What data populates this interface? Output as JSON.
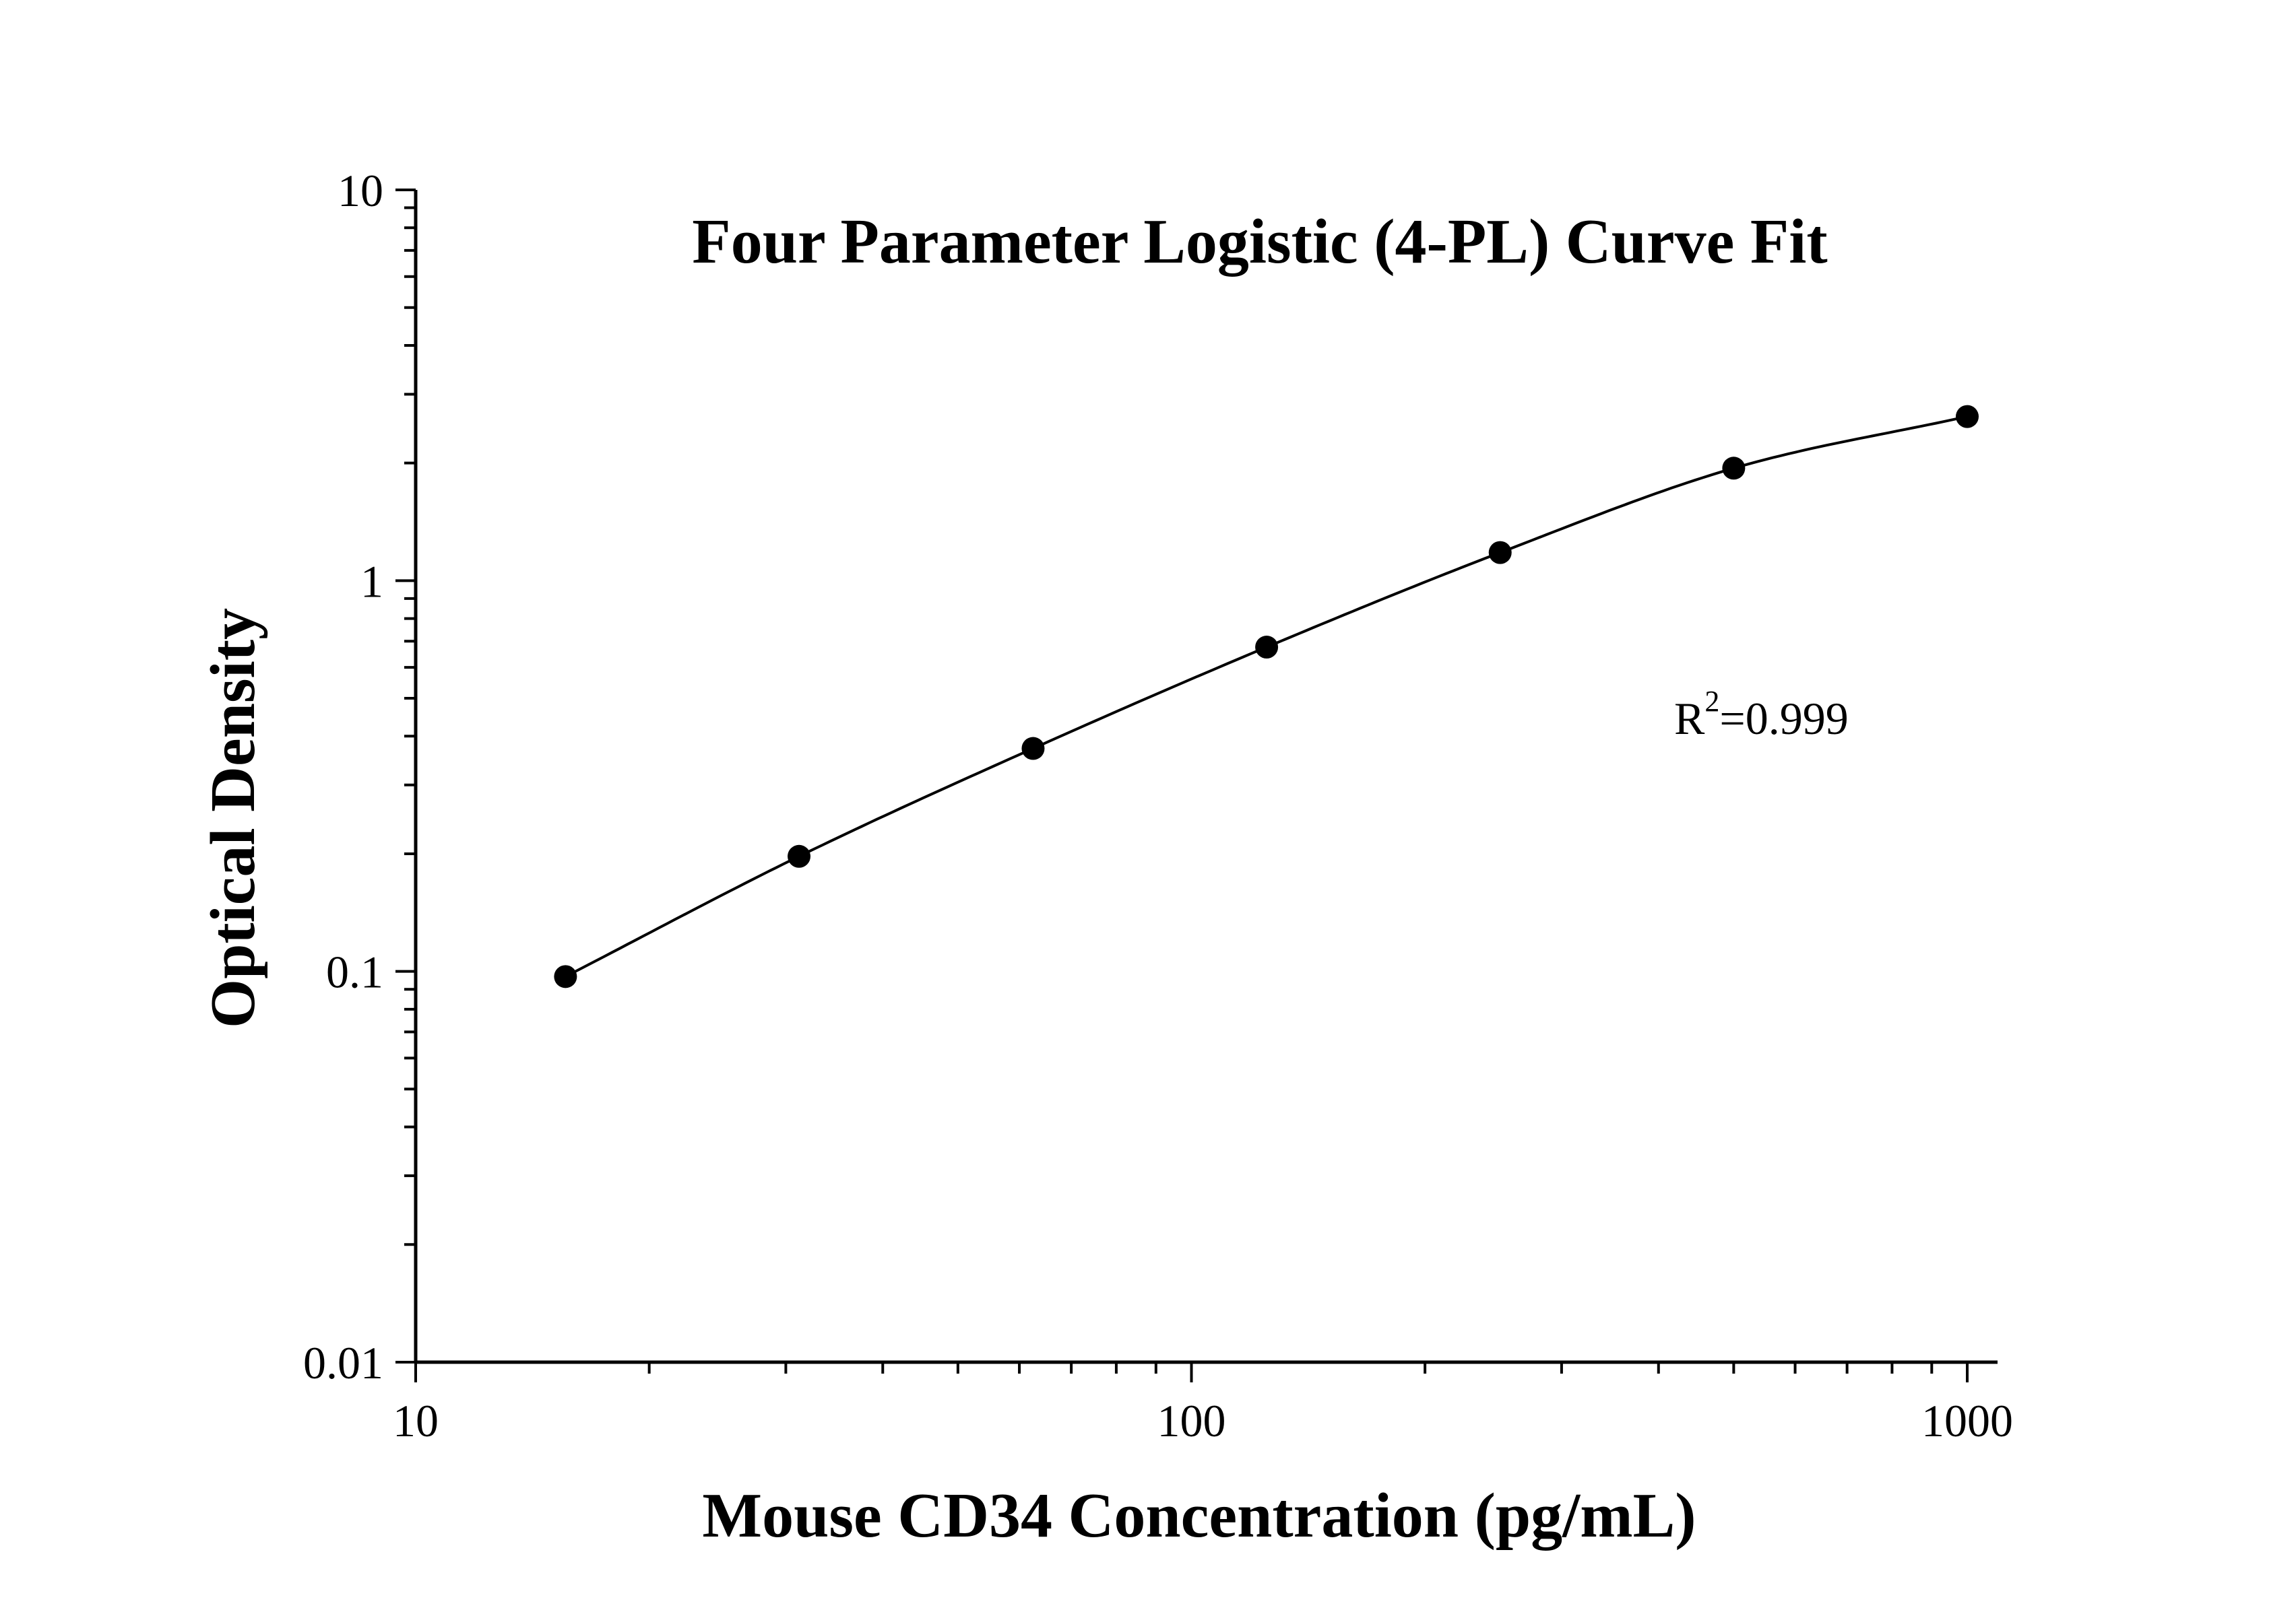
{
  "chart_data": {
    "type": "scatter",
    "title": "Four Parameter Logistic (4-PL) Curve Fit",
    "xlabel": "Mouse CD34 Concentration (pg/mL)",
    "ylabel": "Optical Density",
    "xscale": "log",
    "yscale": "log",
    "xlim": [
      10,
      1000
    ],
    "ylim": [
      0.01,
      10
    ],
    "x_ticks": [
      "10",
      "100",
      "1000"
    ],
    "y_ticks": [
      "0.01",
      "0.1",
      "1",
      "10"
    ],
    "grid": false,
    "series": [
      {
        "marker": "filled-circle",
        "color": "#000000",
        "x": [
          15.6,
          31.2,
          62.5,
          125,
          250,
          500,
          1000
        ],
        "y": [
          0.097,
          0.197,
          0.372,
          0.676,
          1.18,
          1.94,
          2.63
        ]
      }
    ],
    "fit": {
      "model": "4PL",
      "color": "#000000",
      "x_range": [
        15.6,
        1000
      ]
    },
    "annotation": {
      "base": "R",
      "sup": "2",
      "rest": "=0.999"
    }
  }
}
